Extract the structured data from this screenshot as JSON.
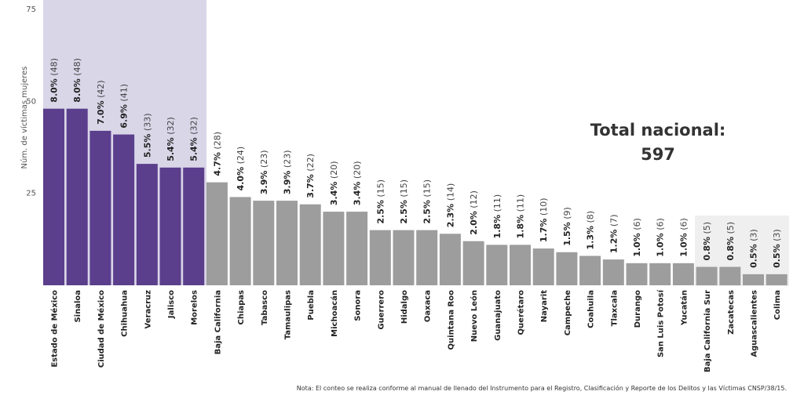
{
  "colors": {
    "highlight_bar": "#5b3e8c",
    "highlight_band": "#d9d6e8",
    "other_bar": "#9d9d9d",
    "low_band": "#efefef"
  },
  "chart_data": {
    "type": "bar",
    "ylabel": "Núm. de víctimas mujeres",
    "yticks": [
      25,
      50,
      75
    ],
    "ylim": [
      0,
      75
    ],
    "highlight_count": 7,
    "categories": [
      "Estado de México",
      "Sinaloa",
      "Ciudad de México",
      "Chihuahua",
      "Veracruz",
      "Jalisco",
      "Morelos",
      "Baja California",
      "Chiapas",
      "Tabasco",
      "Tamaulipas",
      "Puebla",
      "Michoacán",
      "Sonora",
      "Guerrero",
      "Hidalgo",
      "Oaxaca",
      "Quintana Roo",
      "Nuevo León",
      "Guanajuato",
      "Querétaro",
      "Nayarit",
      "Campeche",
      "Coahuila",
      "Tlaxcala",
      "Durango",
      "San Luis Potosí",
      "Yucatán",
      "Baja California Sur",
      "Zacatecas",
      "Aguascalientes",
      "Colima"
    ],
    "values": [
      48,
      48,
      42,
      41,
      33,
      32,
      32,
      28,
      24,
      23,
      23,
      22,
      20,
      20,
      15,
      15,
      15,
      14,
      12,
      11,
      11,
      10,
      9,
      8,
      7,
      6,
      6,
      6,
      5,
      5,
      3,
      3
    ],
    "percent_labels": [
      "8.0%",
      "8.0%",
      "7.0%",
      "6.9%",
      "5.5%",
      "5.4%",
      "5.4%",
      "4.7%",
      "4.0%",
      "3.9%",
      "3.9%",
      "3.7%",
      "3.4%",
      "3.4%",
      "2.5%",
      "2.5%",
      "2.5%",
      "2.3%",
      "2.0%",
      "1.8%",
      "1.8%",
      "1.7%",
      "1.5%",
      "1.3%",
      "1.2%",
      "1.0%",
      "1.0%",
      "1.0%",
      "0.8%",
      "0.8%",
      "0.5%",
      "0.5%"
    ],
    "count_labels": [
      "(48)",
      "(48)",
      "(42)",
      "(41)",
      "(33)",
      "(32)",
      "(32)",
      "(28)",
      "(24)",
      "(23)",
      "(23)",
      "(22)",
      "(20)",
      "(20)",
      "(15)",
      "(15)",
      "(15)",
      "(14)",
      "(12)",
      "(11)",
      "(11)",
      "(10)",
      "(9)",
      "(8)",
      "(7)",
      "(6)",
      "(6)",
      "(6)",
      "(5)",
      "(5)",
      "(3)",
      "(3)"
    ],
    "total_label_line1": "Total nacional:",
    "total_label_line2": "597",
    "note": "Nota: El conteo se realiza conforme al manual de llenado del Instrumento para el Registro, Clasificación y Reporte de los Delitos y las Víctimas CNSP/38/15."
  }
}
